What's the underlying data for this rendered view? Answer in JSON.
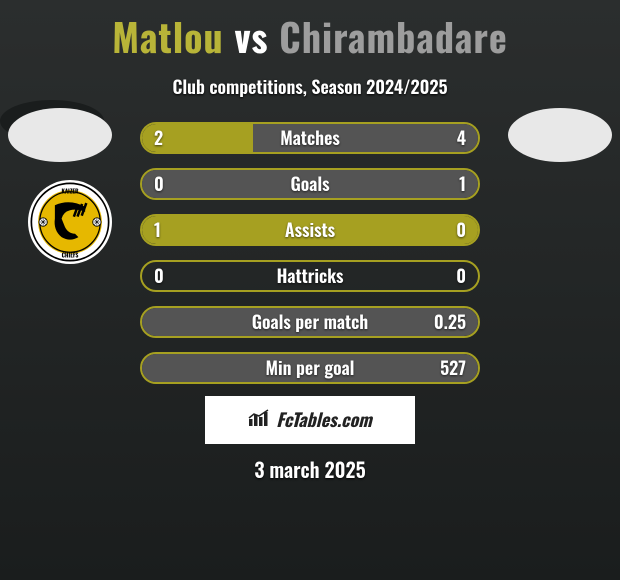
{
  "title": {
    "player1": "Matlou",
    "vs": "vs",
    "player2": "Chirambadare"
  },
  "subtitle": "Club competitions, Season 2024/2025",
  "colors": {
    "player1": "#a6a021",
    "player2": "#545454",
    "title_p1": "#b8b438",
    "title_p2": "#9d9d9d",
    "border_neutral": "#a6a021"
  },
  "avatars": {
    "left_bg": "#e8e8e8",
    "right_bg": "#e8e8e8"
  },
  "rows": [
    {
      "label": "Matches",
      "left": "2",
      "right": "4",
      "left_pct": 33,
      "right_pct": 67
    },
    {
      "label": "Goals",
      "left": "0",
      "right": "1",
      "left_pct": 0,
      "right_pct": 100
    },
    {
      "label": "Assists",
      "left": "1",
      "right": "0",
      "left_pct": 100,
      "right_pct": 0
    },
    {
      "label": "Hattricks",
      "left": "0",
      "right": "0",
      "left_pct": 0,
      "right_pct": 0
    },
    {
      "label": "Goals per match",
      "left": "",
      "right": "0.25",
      "left_pct": 0,
      "right_pct": 100
    },
    {
      "label": "Min per goal",
      "left": "",
      "right": "527",
      "left_pct": 0,
      "right_pct": 100
    }
  ],
  "branding": "FcTables.com",
  "date": "3 march 2025"
}
